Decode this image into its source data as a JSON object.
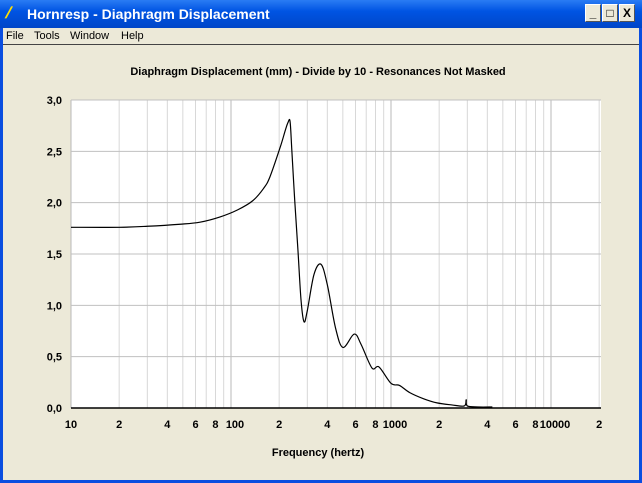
{
  "window": {
    "title": "Hornresp - Diaphragm Displacement",
    "minimize": "_",
    "maximize": "□",
    "close": "X"
  },
  "menu": [
    "File",
    "Tools",
    "Window",
    "Help"
  ],
  "chart_data": {
    "type": "line",
    "title": "Diaphragm Displacement (mm) - Divide by 10 - Resonances Not Masked",
    "xlabel": "Frequency (hertz)",
    "ylabel": "",
    "xscale": "log",
    "xlim": [
      10,
      20000
    ],
    "ylim": [
      0,
      3.0
    ],
    "grid": true,
    "ytick_labels": [
      "0,0",
      "0,5",
      "1,0",
      "1,5",
      "2,0",
      "2,5",
      "3,0"
    ],
    "xtick_labels": [
      {
        "v": 10,
        "t": "10"
      },
      {
        "v": 20,
        "t": "2"
      },
      {
        "v": 40,
        "t": "4"
      },
      {
        "v": 60,
        "t": "6"
      },
      {
        "v": 80,
        "t": "8"
      },
      {
        "v": 100,
        "t": "100"
      },
      {
        "v": 200,
        "t": "2"
      },
      {
        "v": 400,
        "t": "4"
      },
      {
        "v": 600,
        "t": "6"
      },
      {
        "v": 800,
        "t": "8"
      },
      {
        "v": 1000,
        "t": "1000"
      },
      {
        "v": 2000,
        "t": "2"
      },
      {
        "v": 4000,
        "t": "4"
      },
      {
        "v": 6000,
        "t": "6"
      },
      {
        "v": 8000,
        "t": "8"
      },
      {
        "v": 10000,
        "t": "10000"
      },
      {
        "v": 20000,
        "t": "2"
      }
    ],
    "series": [
      {
        "name": "Displacement",
        "x": [
          10,
          20,
          30,
          48,
          64,
          85,
          110,
          137,
          160,
          175,
          203,
          218,
          227,
          234,
          240,
          250,
          262,
          274,
          286,
          300,
          330,
          365,
          400,
          450,
          501,
          589,
          650,
          760,
          841,
          1000,
          1130,
          1310,
          1600,
          1940,
          2400,
          2870,
          2950,
          3000,
          3500,
          4300
        ],
        "y": [
          1.76,
          1.76,
          1.77,
          1.79,
          1.81,
          1.86,
          1.93,
          2.02,
          2.14,
          2.25,
          2.54,
          2.7,
          2.78,
          2.79,
          2.51,
          2.03,
          1.54,
          1.05,
          0.84,
          0.95,
          1.3,
          1.4,
          1.2,
          0.78,
          0.59,
          0.72,
          0.62,
          0.39,
          0.4,
          0.24,
          0.22,
          0.15,
          0.09,
          0.05,
          0.03,
          0.02,
          0.08,
          0.02,
          0.01,
          0.01
        ]
      }
    ]
  }
}
